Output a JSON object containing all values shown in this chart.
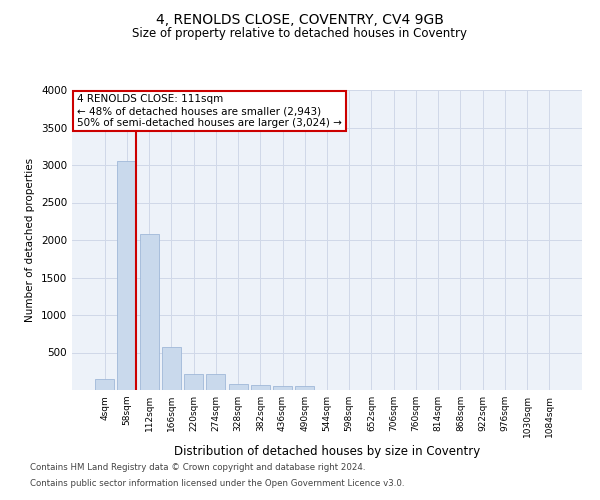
{
  "title": "4, RENOLDS CLOSE, COVENTRY, CV4 9GB",
  "subtitle": "Size of property relative to detached houses in Coventry",
  "xlabel": "Distribution of detached houses by size in Coventry",
  "ylabel": "Number of detached properties",
  "bin_labels": [
    "4sqm",
    "58sqm",
    "112sqm",
    "166sqm",
    "220sqm",
    "274sqm",
    "328sqm",
    "382sqm",
    "436sqm",
    "490sqm",
    "544sqm",
    "598sqm",
    "652sqm",
    "706sqm",
    "760sqm",
    "814sqm",
    "868sqm",
    "922sqm",
    "976sqm",
    "1030sqm",
    "1084sqm"
  ],
  "bar_values": [
    150,
    3060,
    2080,
    570,
    210,
    210,
    80,
    70,
    55,
    55,
    0,
    0,
    0,
    0,
    0,
    0,
    0,
    0,
    0,
    0,
    0
  ],
  "bar_color": "#c9d9ec",
  "bar_edgecolor": "#a0b8d8",
  "annotation_text": "4 RENOLDS CLOSE: 111sqm\n← 48% of detached houses are smaller (2,943)\n50% of semi-detached houses are larger (3,024) →",
  "annotation_box_color": "#ffffff",
  "annotation_box_edgecolor": "#cc0000",
  "ylim": [
    0,
    4000
  ],
  "yticks": [
    0,
    500,
    1000,
    1500,
    2000,
    2500,
    3000,
    3500,
    4000
  ],
  "grid_color": "#d0d8e8",
  "background_color": "#edf2f9",
  "footer_line1": "Contains HM Land Registry data © Crown copyright and database right 2024.",
  "footer_line2": "Contains public sector information licensed under the Open Government Licence v3.0."
}
